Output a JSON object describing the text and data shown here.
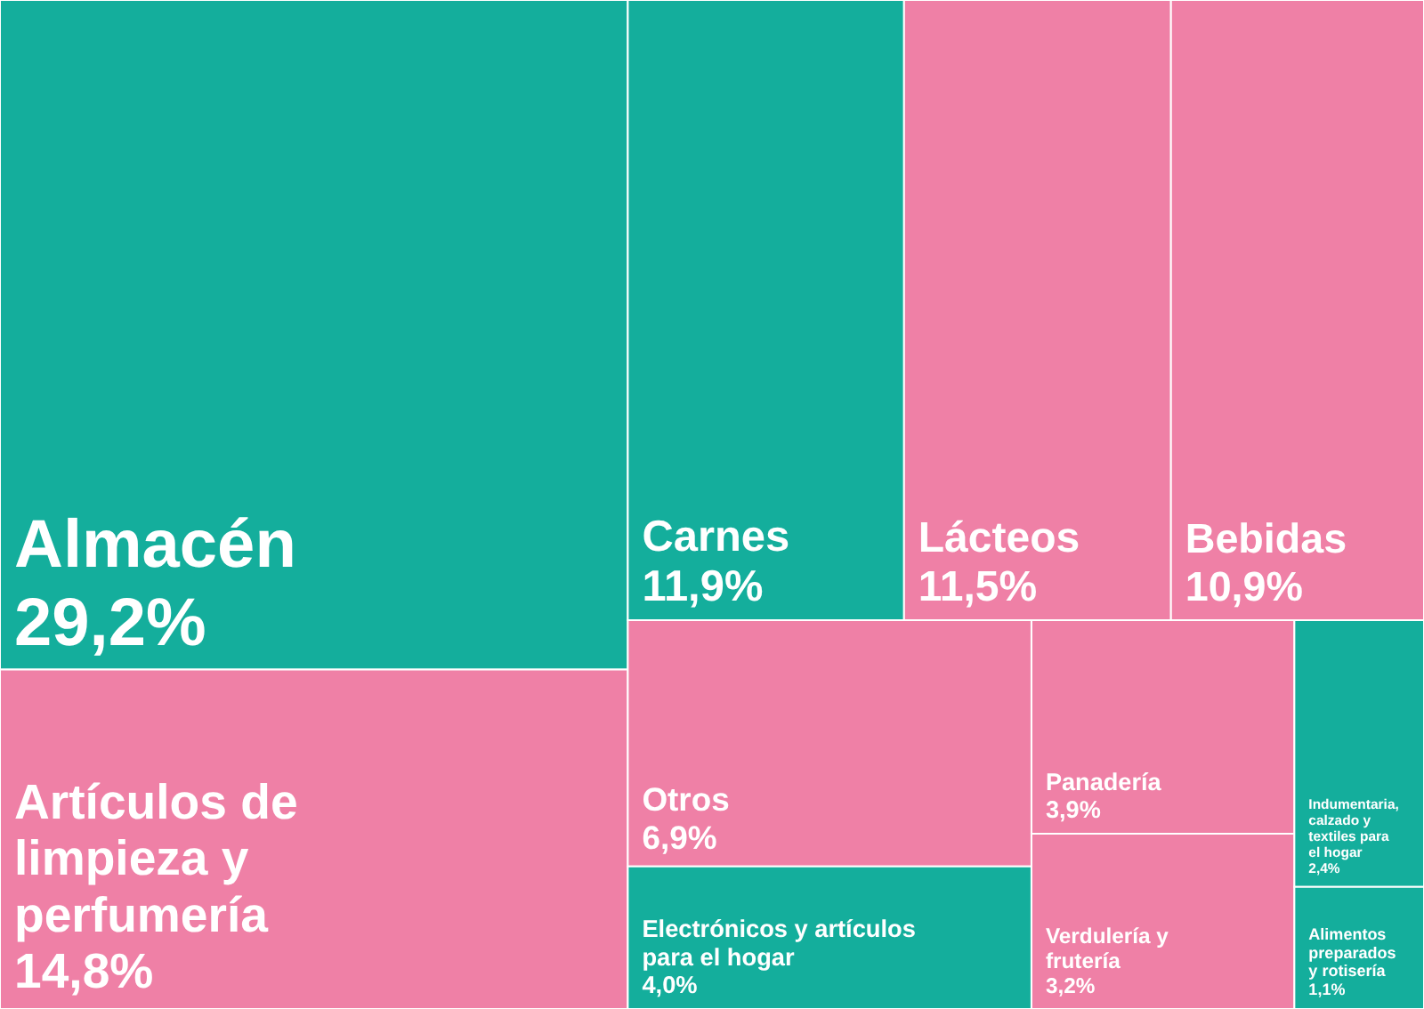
{
  "chart_data": {
    "type": "other",
    "categories": [
      "Almacén",
      "Artículos de limpieza y perfumería",
      "Carnes",
      "Lácteos",
      "Bebidas",
      "Otros",
      "Electrónicos y artículos para el hogar",
      "Panadería",
      "Verdulería y frutería",
      "Indumentaria, calzado y textiles para el hogar",
      "Alimentos preparados y rotisería"
    ],
    "values": [
      29.2,
      14.8,
      11.9,
      11.5,
      10.9,
      6.9,
      4.0,
      3.9,
      3.2,
      2.4,
      1.1
    ],
    "value_labels": [
      "29,2%",
      "14,8%",
      "11,9%",
      "11,5%",
      "10,9%",
      "6,9%",
      "4,0%",
      "3,9%",
      "3,2%",
      "2,4%",
      "1,1%"
    ],
    "colors": [
      "#14ae9c",
      "#ef80a6",
      "#14ae9c",
      "#ef80a6",
      "#ef80a6",
      "#ef80a6",
      "#14ae9c",
      "#ef80a6",
      "#ef80a6",
      "#14ae9c",
      "#14ae9c"
    ]
  }
}
